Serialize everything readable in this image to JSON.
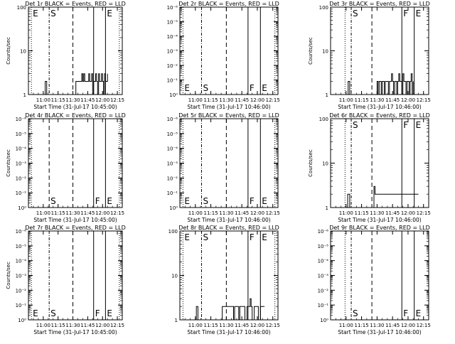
{
  "chart_data": [
    {
      "type": "line",
      "title": "Det 1r BLACK = Events, RED = LLD",
      "xlabel": "Start Time (31-Jul-17 10:45:00)",
      "ylabel": "Counts/sec",
      "xticks": [
        "11:00",
        "11:15",
        "11:30",
        "11:45",
        "12:00",
        "12:15"
      ],
      "yticks": [
        {
          "value": 1,
          "label": "1"
        },
        {
          "value": 10,
          "label": "10"
        },
        {
          "value": 100,
          "label": "100"
        }
      ],
      "yscale": "log",
      "xlim": [
        0,
        95
      ],
      "ylim": [
        1,
        100
      ],
      "markers": [
        {
          "x": 3,
          "label": "E",
          "style": "dotted"
        },
        {
          "x": 21,
          "label": "S",
          "style": "dash-dot"
        },
        {
          "x": 45,
          "label": "",
          "style": "dashed"
        },
        {
          "x": 66,
          "label": "",
          "style": "solid"
        },
        {
          "x": 78,
          "label": "E",
          "style": "solid"
        },
        {
          "x": 92,
          "label": "",
          "style": "dotted"
        }
      ],
      "marker_label_pos": "top",
      "series": [
        {
          "x": [
            16,
            17,
            17.5,
            18.5,
            19,
            48,
            49,
            50,
            51,
            52,
            53,
            54,
            55,
            56,
            57,
            58,
            59,
            60,
            61,
            62,
            63,
            64,
            65,
            66,
            67,
            68,
            69,
            70,
            71,
            72,
            73,
            74,
            75,
            76,
            77,
            78,
            79,
            80
          ],
          "y": [
            1,
            2,
            2,
            1,
            1,
            2,
            2,
            2,
            2,
            2,
            2,
            3,
            2,
            3,
            2,
            2,
            2,
            2,
            3,
            2,
            2,
            3,
            1,
            2,
            2,
            3,
            2,
            1,
            3,
            2,
            2,
            3,
            2,
            1,
            3,
            2,
            2,
            3
          ]
        }
      ]
    },
    {
      "type": "line",
      "title": "Det 2r BLACK = Events, RED = LLD",
      "xlabel": "Start Time (31-Jul-17 10:46:00)",
      "ylabel": "",
      "xticks": [
        "11:00",
        "11:15",
        "11:30",
        "11:45",
        "12:00",
        "12:15"
      ],
      "yticks": [
        {
          "value": 1,
          "label": "10⁰"
        },
        {
          "value": 10,
          "label": "10⁻¹"
        },
        {
          "value": 100,
          "label": "10⁻²"
        },
        {
          "value": 1000,
          "label": "10⁻³"
        },
        {
          "value": 10000,
          "label": "10⁻⁴"
        },
        {
          "value": 100000,
          "label": "10⁻⁵"
        },
        {
          "value": 1000000,
          "label": "10⁻⁶"
        }
      ],
      "yscale": "log",
      "xlim": [
        0,
        95
      ],
      "ylim": [
        1,
        1000000
      ],
      "markers": [
        {
          "x": 3,
          "label": "E",
          "style": "dotted"
        },
        {
          "x": 21,
          "label": "S",
          "style": "dash-dot"
        },
        {
          "x": 45,
          "label": "",
          "style": "dashed"
        },
        {
          "x": 66,
          "label": "F",
          "style": "solid"
        },
        {
          "x": 78,
          "label": "E",
          "style": "solid"
        },
        {
          "x": 92,
          "label": "",
          "style": "dotted"
        }
      ],
      "marker_label_pos": "bottom",
      "series": []
    },
    {
      "type": "line",
      "title": "Det 3r BLACK = Events, RED = LLD",
      "xlabel": "Start Time (31-Jul-17 10:46:00)",
      "ylabel": "Counts/sec",
      "xticks": [
        "11:00",
        "11:15",
        "11:30",
        "11:45",
        "12:00",
        "12:15"
      ],
      "yticks": [
        {
          "value": 1,
          "label": "1"
        },
        {
          "value": 10,
          "label": "10"
        },
        {
          "value": 100,
          "label": "100"
        }
      ],
      "yscale": "log",
      "xlim": [
        0,
        95
      ],
      "ylim": [
        1,
        100
      ],
      "markers": [
        {
          "x": 14,
          "label": "",
          "style": "dotted"
        },
        {
          "x": 20,
          "label": "S",
          "style": "dash-dot"
        },
        {
          "x": 40,
          "label": "",
          "style": "dashed"
        },
        {
          "x": 69,
          "label": "F",
          "style": "solid"
        },
        {
          "x": 81,
          "label": "E",
          "style": "solid"
        },
        {
          "x": 95,
          "label": "",
          "style": "dotted"
        }
      ],
      "marker_label_pos": "top",
      "series": [
        {
          "x": [
            16,
            17,
            17.5,
            18.5,
            19,
            45,
            46,
            47,
            48,
            49,
            50,
            51,
            52,
            53,
            54,
            55,
            56,
            57,
            58,
            59,
            60,
            61,
            62,
            63,
            64,
            65,
            66,
            67,
            68,
            69,
            70,
            71,
            72,
            73,
            74,
            75,
            76,
            77,
            78,
            79,
            80
          ],
          "y": [
            1,
            2,
            2,
            1,
            1,
            2,
            1,
            2,
            2,
            1,
            2,
            2,
            1,
            2,
            2,
            2,
            1,
            2,
            2,
            3,
            2,
            1,
            2,
            2,
            1,
            2,
            3,
            2,
            2,
            1,
            3,
            2,
            2,
            1,
            2,
            2,
            1,
            2,
            3,
            1,
            2
          ]
        }
      ]
    },
    {
      "type": "line",
      "title": "Det 4r BLACK = Events, RED = LLD",
      "xlabel": "Start Time (31-Jul-17 10:45:00)",
      "ylabel": "Counts/sec",
      "xticks": [
        "11:00",
        "11:15",
        "11:30",
        "11:45",
        "12:00",
        "12:15"
      ],
      "yticks": [
        {
          "value": 1,
          "label": "10⁰"
        },
        {
          "value": 10,
          "label": "10⁻¹"
        },
        {
          "value": 100,
          "label": "10⁻²"
        },
        {
          "value": 1000,
          "label": "10⁻³"
        },
        {
          "value": 10000,
          "label": "10⁻⁴"
        },
        {
          "value": 100000,
          "label": "10⁻⁵"
        },
        {
          "value": 1000000,
          "label": "10⁻⁶"
        }
      ],
      "yscale": "log",
      "xlim": [
        0,
        95
      ],
      "ylim": [
        1,
        1000000
      ],
      "markers": [
        {
          "x": 3,
          "label": "",
          "style": "dotted"
        },
        {
          "x": 21,
          "label": "S",
          "style": "dashed"
        },
        {
          "x": 45,
          "label": "",
          "style": "dashed"
        },
        {
          "x": 66,
          "label": "F",
          "style": "solid"
        },
        {
          "x": 78,
          "label": "E",
          "style": "solid"
        },
        {
          "x": 92,
          "label": "",
          "style": "dotted"
        }
      ],
      "marker_label_pos": "bottom",
      "series": []
    },
    {
      "type": "line",
      "title": "Det 5r BLACK = Events, RED = LLD",
      "xlabel": "Start Time (31-Jul-17 10:46:00)",
      "ylabel": "",
      "xticks": [
        "11:00",
        "11:15",
        "11:30",
        "11:45",
        "12:00",
        "12:15"
      ],
      "yticks": [
        {
          "value": 1,
          "label": "10⁰"
        },
        {
          "value": 10,
          "label": "10⁻¹"
        },
        {
          "value": 100,
          "label": "10⁻²"
        },
        {
          "value": 1000,
          "label": "10⁻³"
        },
        {
          "value": 10000,
          "label": "10⁻⁴"
        },
        {
          "value": 100000,
          "label": "10⁻⁵"
        },
        {
          "value": 1000000,
          "label": "10⁻⁶"
        }
      ],
      "yscale": "log",
      "xlim": [
        0,
        95
      ],
      "ylim": [
        1,
        1000000
      ],
      "markers": [
        {
          "x": 3,
          "label": "E",
          "style": "dotted"
        },
        {
          "x": 21,
          "label": "S",
          "style": "dash-dot"
        },
        {
          "x": 45,
          "label": "",
          "style": "dashed"
        },
        {
          "x": 66,
          "label": "F",
          "style": "solid"
        },
        {
          "x": 78,
          "label": "E",
          "style": "solid"
        },
        {
          "x": 92,
          "label": "",
          "style": "dotted"
        }
      ],
      "marker_label_pos": "bottom",
      "series": []
    },
    {
      "type": "line",
      "title": "Det 6r BLACK = Events, RED = LLD",
      "xlabel": "Start Time (31-Jul-17 10:46:00)",
      "ylabel": "Counts/sec",
      "xticks": [
        "11:00",
        "11:15",
        "11:30",
        "11:45",
        "12:00",
        "12:15"
      ],
      "yticks": [
        {
          "value": 1,
          "label": "1"
        },
        {
          "value": 10,
          "label": "10"
        },
        {
          "value": 100,
          "label": "100"
        }
      ],
      "yscale": "log",
      "xlim": [
        0,
        95
      ],
      "ylim": [
        1,
        100
      ],
      "markers": [
        {
          "x": 14,
          "label": "",
          "style": "dotted"
        },
        {
          "x": 20,
          "label": "S",
          "style": "dash-dot"
        },
        {
          "x": 40,
          "label": "",
          "style": "dashed"
        },
        {
          "x": 69,
          "label": "F",
          "style": "solid"
        },
        {
          "x": 81,
          "label": "E",
          "style": "solid"
        },
        {
          "x": 95,
          "label": "",
          "style": "dotted"
        }
      ],
      "marker_label_pos": "top",
      "series": [
        {
          "x": [
            16,
            16.5,
            18,
            18.5,
            42,
            43,
            44,
            45,
            50,
            55,
            60,
            65,
            70,
            75,
            80,
            85
          ],
          "y": [
            1,
            2,
            2,
            1,
            3,
            2,
            2,
            2,
            2,
            2,
            2,
            2,
            2,
            2,
            2,
            2
          ]
        }
      ]
    },
    {
      "type": "line",
      "title": "Det 7r BLACK = Events, RED = LLD",
      "xlabel": "Start Time (31-Jul-17 10:45:00)",
      "ylabel": "Counts/sec",
      "xticks": [
        "11:00",
        "11:15",
        "11:30",
        "11:45",
        "12:00",
        "12:15"
      ],
      "yticks": [
        {
          "value": 1,
          "label": "10⁰"
        },
        {
          "value": 10,
          "label": "10⁻¹"
        },
        {
          "value": 100,
          "label": "10⁻²"
        },
        {
          "value": 1000,
          "label": "10⁻³"
        },
        {
          "value": 10000,
          "label": "10⁻⁴"
        },
        {
          "value": 100000,
          "label": "10⁻⁵"
        },
        {
          "value": 1000000,
          "label": "10⁻⁶"
        }
      ],
      "yscale": "log",
      "xlim": [
        0,
        95
      ],
      "ylim": [
        1,
        1000000
      ],
      "markers": [
        {
          "x": 3,
          "label": "E",
          "style": "dotted"
        },
        {
          "x": 21,
          "label": "S",
          "style": "dash-dot"
        },
        {
          "x": 45,
          "label": "",
          "style": "dashed"
        },
        {
          "x": 66,
          "label": "F",
          "style": "solid"
        },
        {
          "x": 78,
          "label": "E",
          "style": "solid"
        },
        {
          "x": 92,
          "label": "",
          "style": "dotted"
        }
      ],
      "marker_label_pos": "bottom",
      "series": []
    },
    {
      "type": "line",
      "title": "Det 8r BLACK = Events, RED = LLD",
      "xlabel": "Start Time (31-Jul-17 10:46:00)",
      "ylabel": "",
      "xticks": [
        "11:00",
        "11:15",
        "11:30",
        "11:45",
        "12:00",
        "12:15"
      ],
      "yticks": [
        {
          "value": 1,
          "label": "1"
        },
        {
          "value": 10,
          "label": "10"
        },
        {
          "value": 100,
          "label": "100"
        }
      ],
      "yscale": "log",
      "xlim": [
        0,
        95
      ],
      "ylim": [
        1,
        100
      ],
      "markers": [
        {
          "x": 3,
          "label": "E",
          "style": "dotted"
        },
        {
          "x": 21,
          "label": "S",
          "style": "dash-dot"
        },
        {
          "x": 45,
          "label": "",
          "style": "dashed"
        },
        {
          "x": 66,
          "label": "F",
          "style": "solid"
        },
        {
          "x": 78,
          "label": "E",
          "style": "solid"
        },
        {
          "x": 92,
          "label": "",
          "style": "dotted"
        }
      ],
      "marker_label_pos": "top",
      "series": [
        {
          "x": [
            15,
            16,
            16.5,
            17.5,
            18,
            41,
            42,
            45,
            50,
            52,
            53,
            55,
            57,
            58,
            60,
            62,
            63,
            65,
            67,
            68,
            69,
            70,
            72,
            74,
            76,
            78,
            80,
            82
          ],
          "y": [
            1,
            2,
            2,
            1,
            1,
            2,
            2,
            2,
            2,
            1,
            2,
            2,
            1,
            2,
            2,
            2,
            1,
            2,
            2,
            3,
            2,
            1,
            2,
            2,
            1,
            2,
            2,
            2
          ]
        }
      ]
    },
    {
      "type": "line",
      "title": "Det 9r BLACK = Events, RED = LLD",
      "xlabel": "Start Time (31-Jul-17 10:46:00)",
      "ylabel": "",
      "xticks": [
        "11:00",
        "11:15",
        "11:30",
        "11:45",
        "12:00",
        "12:15"
      ],
      "yticks": [
        {
          "value": 1,
          "label": "10⁰"
        },
        {
          "value": 10,
          "label": "10⁻¹"
        },
        {
          "value": 100,
          "label": "10⁻²"
        },
        {
          "value": 1000,
          "label": "10⁻³"
        },
        {
          "value": 10000,
          "label": "10⁻⁴"
        },
        {
          "value": 100000,
          "label": "10⁻⁵"
        },
        {
          "value": 1000000,
          "label": "10⁻⁶"
        }
      ],
      "yscale": "log",
      "xlim": [
        0,
        95
      ],
      "ylim": [
        1,
        1000000
      ],
      "markers": [
        {
          "x": 14,
          "label": "",
          "style": "dotted"
        },
        {
          "x": 20,
          "label": "S",
          "style": "dash-dot"
        },
        {
          "x": 40,
          "label": "",
          "style": "dashed"
        },
        {
          "x": 69,
          "label": "F",
          "style": "solid"
        },
        {
          "x": 81,
          "label": "E",
          "style": "solid"
        },
        {
          "x": 95,
          "label": "",
          "style": "dotted"
        }
      ],
      "marker_label_pos": "bottom",
      "series": []
    }
  ]
}
